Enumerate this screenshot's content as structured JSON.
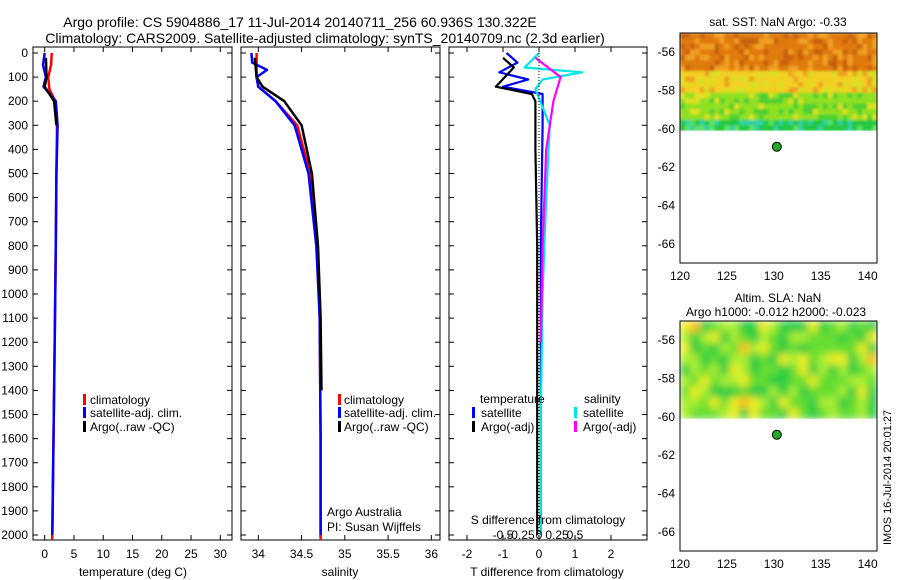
{
  "header": {
    "line1": "Argo profile: CS 5904886_17 11-Jul-2014 20140711_256 60.936S 130.322E",
    "line2": "Climatology: CARS2009. Satellite-adjusted climatology: synTS_20140709.nc (2.3d earlier)"
  },
  "footer": {
    "stamp": "IMOS 16-Jul-2014 20:01:27"
  },
  "colors": {
    "climatology": "#ff0000",
    "satellite": "#0000ff",
    "argo": "#000000",
    "sal_satellite": "#00e6e6",
    "sal_argo": "#ff00ff",
    "float_marker": "#22aa22"
  },
  "chart_data": [
    {
      "id": "temperature-profile",
      "type": "line",
      "xlabel": "temperature (deg C)",
      "xlim": [
        -2,
        32
      ],
      "xticks": [
        0,
        5,
        10,
        15,
        20,
        25,
        30
      ],
      "ylim": [
        0,
        2080
      ],
      "yticks": [
        0,
        100,
        200,
        300,
        400,
        500,
        600,
        700,
        800,
        900,
        1000,
        1100,
        1200,
        1300,
        1400,
        1500,
        1600,
        1700,
        1800,
        1900,
        2000
      ],
      "legend": {
        "entries": [
          "climatology",
          "satellite-adj. clim.",
          "Argo(..raw -QC)"
        ],
        "location": "lower-center"
      },
      "series": [
        {
          "name": "climatology",
          "color": "#ff0000",
          "points": [
            [
              1.2,
              0
            ],
            [
              1.1,
              50
            ],
            [
              0.6,
              100
            ],
            [
              0.8,
              150
            ],
            [
              1.8,
              200
            ],
            [
              2.1,
              300
            ],
            [
              2.0,
              500
            ],
            [
              1.9,
              800
            ],
            [
              1.7,
              1200
            ],
            [
              1.5,
              1600
            ],
            [
              1.3,
              2000
            ],
            [
              1.2,
              2080
            ]
          ]
        },
        {
          "name": "satellite-adj. clim.",
          "color": "#0000ff",
          "points": [
            [
              0.0,
              0
            ],
            [
              -0.3,
              50
            ],
            [
              0.2,
              100
            ],
            [
              -0.2,
              140
            ],
            [
              1.9,
              200
            ],
            [
              2.2,
              300
            ],
            [
              2.0,
              500
            ],
            [
              1.9,
              800
            ],
            [
              1.7,
              1200
            ],
            [
              1.5,
              1600
            ],
            [
              1.3,
              2000
            ]
          ]
        },
        {
          "name": "Argo(..raw -QC)",
          "color": "#000000",
          "points": [
            [
              0.2,
              20
            ],
            [
              0.3,
              100
            ],
            [
              0.0,
              140
            ],
            [
              1.6,
              200
            ],
            [
              2.0,
              300
            ]
          ]
        }
      ]
    },
    {
      "id": "salinity-profile",
      "type": "line",
      "xlabel": "salinity",
      "xlim": [
        33.8,
        36.1
      ],
      "xticks": [
        34,
        34.5,
        35,
        35.5,
        36
      ],
      "ylim": [
        0,
        2080
      ],
      "legend": {
        "entries": [
          "climatology",
          "satellite-adj. clim.",
          "Argo(..raw -QC)"
        ],
        "location": "lower-center"
      },
      "annotation": [
        "Argo Australia",
        "PI: Susan Wijffels"
      ],
      "series": [
        {
          "name": "climatology",
          "color": "#ff0000",
          "points": [
            [
              33.98,
              0
            ],
            [
              33.98,
              100
            ],
            [
              34.0,
              140
            ],
            [
              34.2,
              200
            ],
            [
              34.45,
              300
            ],
            [
              34.6,
              500
            ],
            [
              34.68,
              800
            ],
            [
              34.71,
              1100
            ],
            [
              34.72,
              1600
            ],
            [
              34.72,
              2080
            ]
          ]
        },
        {
          "name": "satellite-adj. clim.",
          "color": "#0000ff",
          "points": [
            [
              33.92,
              0
            ],
            [
              33.93,
              40
            ],
            [
              34.1,
              70
            ],
            [
              33.98,
              100
            ],
            [
              34.0,
              140
            ],
            [
              34.2,
              200
            ],
            [
              34.42,
              300
            ],
            [
              34.58,
              500
            ],
            [
              34.67,
              800
            ],
            [
              34.71,
              1100
            ],
            [
              34.72,
              1600
            ],
            [
              34.72,
              2000
            ]
          ]
        },
        {
          "name": "Argo(..raw -QC)",
          "color": "#000000",
          "points": [
            [
              33.96,
              20
            ],
            [
              33.98,
              100
            ],
            [
              34.05,
              140
            ],
            [
              34.3,
              200
            ],
            [
              34.5,
              300
            ],
            [
              34.62,
              500
            ],
            [
              34.69,
              800
            ],
            [
              34.72,
              1100
            ],
            [
              34.73,
              1400
            ]
          ]
        }
      ]
    },
    {
      "id": "difference-profile",
      "type": "line",
      "xlabel": "T difference from climatology",
      "xlim": [
        -2.5,
        3.0
      ],
      "xticks": [
        -2,
        -1,
        0,
        1,
        2
      ],
      "top_xlabel": "S difference from climatology",
      "top_xticks": [
        "-0.5",
        "-0.25",
        "0",
        "0.25",
        "0.5"
      ],
      "top_xtick_positions": [
        -1.0,
        -0.5,
        0.0,
        0.5,
        1.0
      ],
      "ylim": [
        0,
        2080
      ],
      "legend": {
        "title_left": "temperature",
        "title_right": "salinity",
        "entries": [
          "satellite",
          "Argo(-adj)",
          "satellite",
          "Argo(-adj)"
        ],
        "location": "lower-center"
      },
      "series": [
        {
          "name": "T satellite",
          "color": "#0000ff",
          "points": [
            [
              -0.9,
              0
            ],
            [
              -0.6,
              40
            ],
            [
              -1.1,
              80
            ],
            [
              -0.3,
              110
            ],
            [
              -1.0,
              140
            ],
            [
              0.1,
              170
            ],
            [
              0.1,
              300
            ],
            [
              0.05,
              800
            ],
            [
              0.05,
              2000
            ]
          ]
        },
        {
          "name": "T Argo(-adj)",
          "color": "#000000",
          "points": [
            [
              -1.0,
              20
            ],
            [
              -0.7,
              60
            ],
            [
              -1.2,
              140
            ],
            [
              -0.2,
              170
            ],
            [
              -0.1,
              200
            ],
            [
              -0.1,
              400
            ],
            [
              -0.05,
              800
            ],
            [
              -0.05,
              2000
            ]
          ]
        },
        {
          "name": "S satellite",
          "color": "#00e6e6",
          "points": [
            [
              0.0,
              0
            ],
            [
              -0.4,
              60
            ],
            [
              1.2,
              80
            ],
            [
              0.1,
              110
            ],
            [
              -0.1,
              150
            ],
            [
              0.3,
              300
            ],
            [
              0.2,
              600
            ],
            [
              0.1,
              1000
            ],
            [
              0.05,
              1500
            ],
            [
              0.05,
              2000
            ]
          ]
        },
        {
          "name": "S Argo(-adj)",
          "color": "#ff00ff",
          "points": [
            [
              -0.1,
              20
            ],
            [
              0.6,
              100
            ],
            [
              0.4,
              200
            ],
            [
              0.2,
              400
            ],
            [
              0.1,
              800
            ],
            [
              0.05,
              1200
            ]
          ]
        }
      ]
    },
    {
      "id": "sst-map",
      "type": "heatmap",
      "title": "sat. SST: NaN Argo: -0.33",
      "xlim": [
        120,
        141
      ],
      "ylim": [
        -67,
        -55
      ],
      "xticks": [
        120,
        125,
        130,
        135,
        140
      ],
      "yticks": [
        -56,
        -58,
        -60,
        -62,
        -64,
        -66
      ],
      "data_extent_lat": [
        -60.1,
        -55
      ],
      "float_position": [
        130.322,
        -60.936
      ]
    },
    {
      "id": "sla-map",
      "type": "heatmap",
      "title_line1": "Altim. SLA: NaN",
      "title_line2": "Argo h1000: -0.012 h2000: -0.023",
      "xlim": [
        120,
        141
      ],
      "ylim": [
        -67,
        -55
      ],
      "xticks": [
        120,
        125,
        130,
        135,
        140
      ],
      "yticks": [
        -56,
        -58,
        -60,
        -62,
        -64,
        -66
      ],
      "data_extent_lat": [
        -60.1,
        -55
      ],
      "float_position": [
        130.322,
        -60.936
      ]
    }
  ]
}
